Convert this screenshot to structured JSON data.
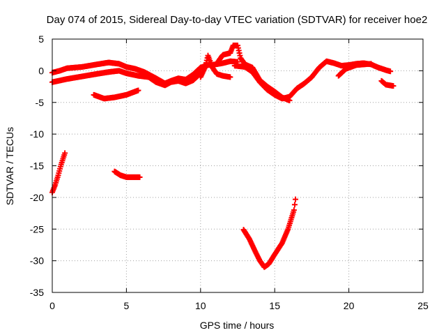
{
  "colors": {
    "series": "#ff0000",
    "axis": "#000000",
    "grid": "#a0a0a0",
    "background": "#ffffff"
  },
  "chart_data": {
    "type": "scatter",
    "title": "Day 074 of 2015, Sidereal Day-to-day VTEC variation (SDTVAR) for receiver hoe2",
    "xlabel": "GPS time / hours",
    "ylabel": "SDTVAR / TECUs",
    "xlim": [
      0,
      25
    ],
    "ylim": [
      -35,
      5
    ],
    "xticks": [
      0,
      5,
      10,
      15,
      20,
      25
    ],
    "yticks": [
      5,
      0,
      -5,
      -10,
      -15,
      -20,
      -25,
      -30,
      -35
    ],
    "grid": true,
    "marker": "+",
    "series": [
      {
        "name": "track-1",
        "points": [
          [
            0.0,
            -0.3
          ],
          [
            0.5,
            0.0
          ],
          [
            1.0,
            0.4
          ],
          [
            2.0,
            0.6
          ],
          [
            3.0,
            1.0
          ],
          [
            3.8,
            1.3
          ],
          [
            4.5,
            1.1
          ],
          [
            5.0,
            0.6
          ],
          [
            5.6,
            0.3
          ],
          [
            6.2,
            -0.2
          ],
          [
            7.0,
            -1.2
          ],
          [
            7.6,
            -2.0
          ],
          [
            8.0,
            -1.6
          ],
          [
            8.5,
            -1.2
          ],
          [
            9.0,
            -1.4
          ],
          [
            9.5,
            -0.6
          ],
          [
            10.0,
            0.5
          ],
          [
            10.5,
            0.9
          ],
          [
            11.0,
            1.0
          ],
          [
            11.5,
            1.2
          ],
          [
            12.0,
            1.5
          ],
          [
            12.5,
            1.4
          ]
        ]
      },
      {
        "name": "track-2",
        "points": [
          [
            0.0,
            -1.8
          ],
          [
            1.0,
            -1.3
          ],
          [
            2.0,
            -0.9
          ],
          [
            3.0,
            -0.5
          ],
          [
            3.8,
            -0.2
          ],
          [
            4.5,
            0.0
          ],
          [
            5.0,
            -0.4
          ],
          [
            5.8,
            -0.8
          ],
          [
            6.5,
            -1.0
          ],
          [
            7.0,
            -1.8
          ],
          [
            7.6,
            -2.3
          ],
          [
            8.0,
            -1.8
          ],
          [
            8.5,
            -1.6
          ],
          [
            9.0,
            -2.0
          ],
          [
            9.5,
            -1.5
          ],
          [
            10.0,
            -0.4
          ]
        ]
      },
      {
        "name": "track-3",
        "points": [
          [
            2.8,
            -3.8
          ],
          [
            3.5,
            -4.4
          ],
          [
            4.2,
            -4.2
          ],
          [
            5.0,
            -3.8
          ],
          [
            5.8,
            -3.1
          ]
        ]
      },
      {
        "name": "track-4",
        "points": [
          [
            10.0,
            -1.0
          ],
          [
            10.3,
            0.5
          ],
          [
            10.5,
            2.4
          ],
          [
            10.8,
            0.5
          ],
          [
            11.1,
            -0.5
          ],
          [
            11.5,
            -0.8
          ],
          [
            12.0,
            -1.0
          ]
        ]
      },
      {
        "name": "track-5",
        "points": [
          [
            11.2,
            1.5
          ],
          [
            11.5,
            2.5
          ],
          [
            12.0,
            2.8
          ],
          [
            12.2,
            4.0
          ],
          [
            12.5,
            4.0
          ],
          [
            12.7,
            2.0
          ],
          [
            13.0,
            1.0
          ],
          [
            13.5,
            0.5
          ],
          [
            14.0,
            -1.5
          ],
          [
            14.5,
            -2.5
          ],
          [
            15.0,
            -3.3
          ],
          [
            15.5,
            -4.2
          ],
          [
            16.0,
            -4.7
          ]
        ]
      },
      {
        "name": "track-6",
        "points": [
          [
            12.3,
            0.8
          ],
          [
            13.0,
            0.6
          ],
          [
            13.5,
            -0.2
          ],
          [
            14.0,
            -1.8
          ],
          [
            14.5,
            -3.0
          ],
          [
            15.0,
            -3.8
          ],
          [
            15.5,
            -4.4
          ],
          [
            16.0,
            -4.1
          ],
          [
            16.5,
            -2.8
          ],
          [
            17.0,
            -2.0
          ],
          [
            17.5,
            -1.0
          ],
          [
            18.0,
            0.5
          ],
          [
            18.5,
            1.5
          ],
          [
            19.0,
            1.2
          ],
          [
            19.5,
            0.8
          ],
          [
            20.0,
            0.9
          ],
          [
            20.5,
            1.1
          ],
          [
            21.0,
            1.2
          ],
          [
            21.5,
            1.0
          ],
          [
            22.0,
            0.5
          ],
          [
            22.5,
            0.1
          ],
          [
            22.8,
            -0.1
          ]
        ]
      },
      {
        "name": "track-7",
        "points": [
          [
            19.3,
            -0.8
          ],
          [
            19.8,
            0.3
          ],
          [
            20.5,
            0.9
          ],
          [
            21.0,
            1.0
          ],
          [
            21.5,
            1.1
          ]
        ]
      },
      {
        "name": "track-8",
        "points": [
          [
            22.2,
            -1.6
          ],
          [
            22.5,
            -2.2
          ],
          [
            23.0,
            -2.4
          ]
        ]
      },
      {
        "name": "track-9",
        "points": [
          [
            0.0,
            -19.2
          ],
          [
            0.2,
            -18.0
          ],
          [
            0.4,
            -16.5
          ],
          [
            0.6,
            -14.8
          ],
          [
            0.85,
            -13.0
          ]
        ]
      },
      {
        "name": "track-10",
        "points": [
          [
            4.2,
            -15.9
          ],
          [
            4.6,
            -16.5
          ],
          [
            5.0,
            -16.8
          ],
          [
            5.5,
            -16.8
          ],
          [
            5.9,
            -16.8
          ]
        ]
      },
      {
        "name": "track-11",
        "points": [
          [
            12.9,
            -25.1
          ],
          [
            13.3,
            -26.6
          ],
          [
            13.7,
            -28.6
          ],
          [
            14.0,
            -30.0
          ],
          [
            14.3,
            -31.0
          ],
          [
            14.6,
            -30.5
          ],
          [
            15.0,
            -29.0
          ],
          [
            15.5,
            -27.2
          ],
          [
            15.9,
            -25.0
          ],
          [
            16.3,
            -22.0
          ],
          [
            16.4,
            -20.3
          ]
        ]
      }
    ]
  }
}
